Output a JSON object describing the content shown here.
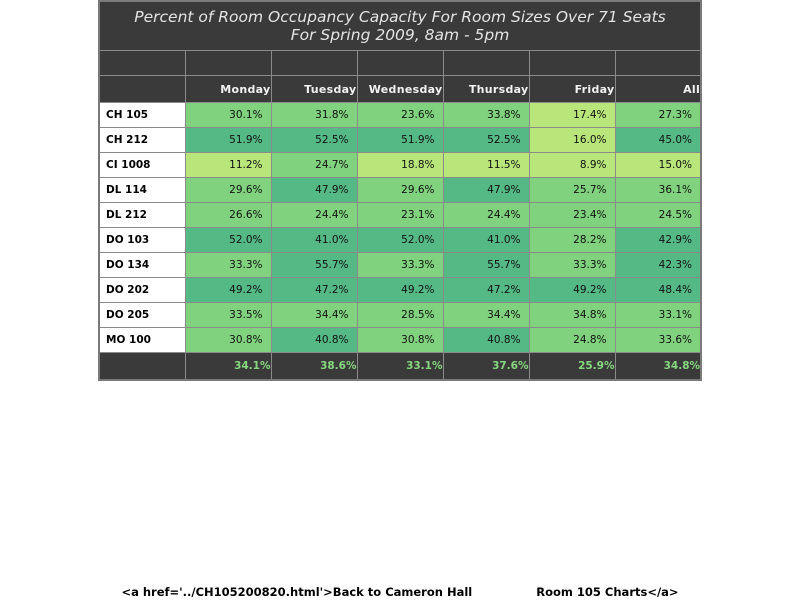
{
  "title": {
    "line1": "Percent of Room Occupancy Capacity For Room Sizes Over 71 Seats",
    "line2": "For Spring 2009, 8am - 5pm"
  },
  "columns": [
    "Monday",
    "Tuesday",
    "Wednesday",
    "Thursday",
    "Friday",
    "All"
  ],
  "rows": [
    {
      "room": "CH 105",
      "values": [
        "30.1%",
        "31.8%",
        "23.6%",
        "33.8%",
        "17.4%",
        "27.3%"
      ]
    },
    {
      "room": "CH 212",
      "values": [
        "51.9%",
        "52.5%",
        "51.9%",
        "52.5%",
        "16.0%",
        "45.0%"
      ]
    },
    {
      "room": "CI 1008",
      "values": [
        "11.2%",
        "24.7%",
        "18.8%",
        "11.5%",
        "8.9%",
        "15.0%"
      ]
    },
    {
      "room": "DL 114",
      "values": [
        "29.6%",
        "47.9%",
        "29.6%",
        "47.9%",
        "25.7%",
        "36.1%"
      ]
    },
    {
      "room": "DL 212",
      "values": [
        "26.6%",
        "24.4%",
        "23.1%",
        "24.4%",
        "23.4%",
        "24.5%"
      ]
    },
    {
      "room": "DO 103",
      "values": [
        "52.0%",
        "41.0%",
        "52.0%",
        "41.0%",
        "28.2%",
        "42.9%"
      ]
    },
    {
      "room": "DO 134",
      "values": [
        "33.3%",
        "55.7%",
        "33.3%",
        "55.7%",
        "33.3%",
        "42.3%"
      ]
    },
    {
      "room": "DO 202",
      "values": [
        "49.2%",
        "47.2%",
        "49.2%",
        "47.2%",
        "49.2%",
        "48.4%"
      ]
    },
    {
      "room": "DO 205",
      "values": [
        "33.5%",
        "34.4%",
        "28.5%",
        "34.4%",
        "34.8%",
        "33.1%"
      ]
    },
    {
      "room": "MO 100",
      "values": [
        "30.8%",
        "40.8%",
        "30.8%",
        "40.8%",
        "24.8%",
        "33.6%"
      ]
    }
  ],
  "totals": [
    "34.1%",
    "38.6%",
    "33.1%",
    "37.6%",
    "25.9%",
    "34.8%"
  ],
  "colors": {
    "header_bg": "#3a3a3a",
    "low": "#b9e67a",
    "mid": "#80d27e",
    "high": "#55b985",
    "total_text": "#86d87e"
  },
  "footer": {
    "text": "<a href='../CH105200820.html'>Back to Cameron Hall                Room 105 Charts</a>"
  }
}
